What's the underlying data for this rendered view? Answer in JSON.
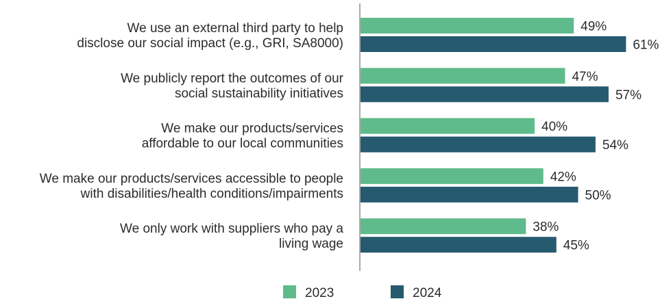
{
  "chart_data": {
    "type": "bar",
    "orientation": "horizontal",
    "categories": [
      [
        "We use an external third party to help",
        "disclose our social impact (e.g., GRI, SA8000)"
      ],
      [
        "We publicly report the outcomes of our",
        "social sustainability initiatives"
      ],
      [
        "We make our products/services",
        "affordable to our local communities"
      ],
      [
        "We make our products/services accessible to people",
        "with disabilities/health conditions/impairments"
      ],
      [
        "We only work with suppliers who pay a",
        "living wage"
      ]
    ],
    "series": [
      {
        "name": "2023",
        "color": "#5fbb8b",
        "values": [
          49,
          47,
          40,
          42,
          38
        ],
        "labels": [
          "49%",
          "47%",
          "40%",
          "42%",
          "38%"
        ]
      },
      {
        "name": "2024",
        "color": "#265a6e",
        "values": [
          61,
          57,
          54,
          50,
          45
        ],
        "labels": [
          "61%",
          "57%",
          "54%",
          "50%",
          "45%"
        ]
      }
    ],
    "xlim": [
      0,
      64
    ],
    "grid": false,
    "legend_position": "bottom"
  }
}
